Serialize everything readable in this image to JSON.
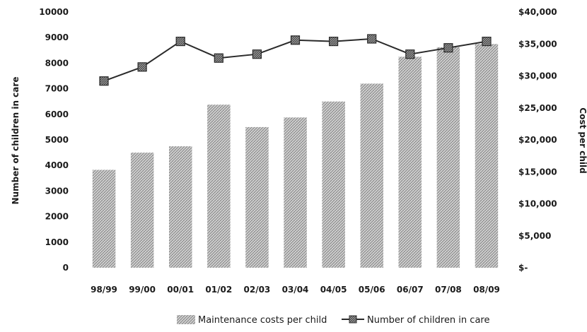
{
  "chart_data": {
    "type": "bar",
    "categories": [
      "98/99",
      "99/00",
      "00/01",
      "01/02",
      "02/03",
      "03/04",
      "04/05",
      "05/06",
      "06/07",
      "07/08",
      "08/09"
    ],
    "series": [
      {
        "name": "Maintenance costs per child",
        "type": "bar",
        "axis": "right",
        "values": [
          15300,
          18000,
          19000,
          25500,
          22000,
          23500,
          26000,
          28800,
          33000,
          34500,
          35000
        ]
      },
      {
        "name": "Number of children in care",
        "type": "line",
        "axis": "left",
        "marker": "square",
        "values": [
          7300,
          7850,
          8850,
          8200,
          8350,
          8900,
          8850,
          8950,
          8350,
          8600,
          8850
        ]
      }
    ],
    "ylabel_left": "Number of children in care",
    "ylabel_right": "Cost per child",
    "ylim_left": [
      0,
      10000
    ],
    "ylim_right": [
      0,
      40000
    ],
    "yticks_left": [
      "0",
      "1000",
      "2000",
      "3000",
      "4000",
      "5000",
      "6000",
      "7000",
      "8000",
      "9000",
      "10000"
    ],
    "yticks_right": [
      "$-",
      "$5,000",
      "$10,000",
      "$15,000",
      "$20,000",
      "$25,000",
      "$30,000",
      "$35,000",
      "$40,000"
    ],
    "legend_position": "bottom",
    "colors": {
      "bar": "#c8c8c8",
      "bar_hatch": "#8a8a8a",
      "line": "#2a2a2a",
      "marker": "#555555"
    }
  }
}
